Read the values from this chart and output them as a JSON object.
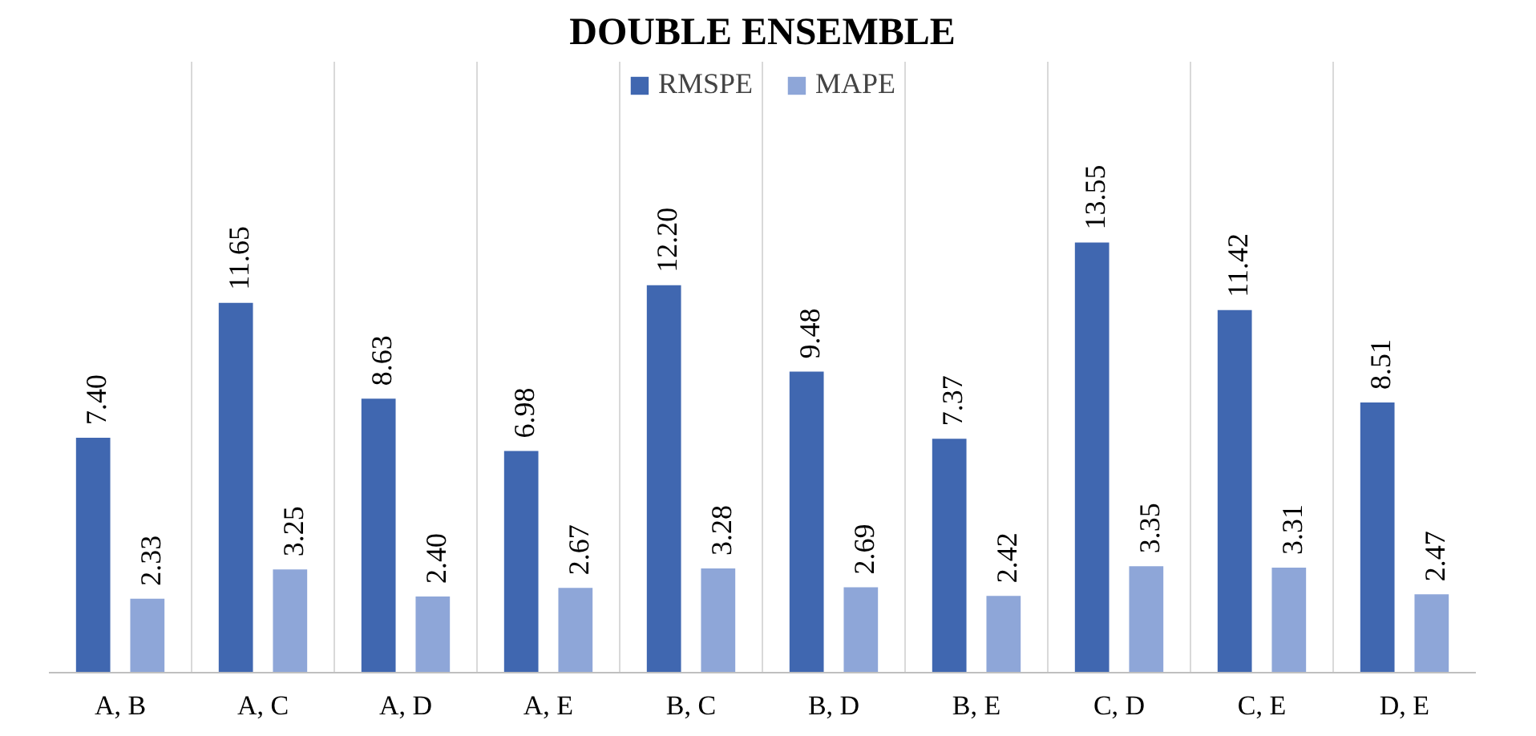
{
  "chart_data": {
    "type": "bar",
    "title": "DOUBLE ENSEMBLE",
    "categories": [
      "A, B",
      "A, C",
      "A, D",
      "A, E",
      "B, C",
      "B, D",
      "B, E",
      "C, D",
      "C, E",
      "D, E"
    ],
    "series": [
      {
        "name": "RMSPE",
        "color": "#4067b0",
        "values": [
          7.4,
          11.65,
          8.63,
          6.98,
          12.2,
          9.48,
          7.37,
          13.55,
          11.42,
          8.51
        ],
        "value_labels": [
          "7.40",
          "11.65",
          "8.63",
          "6.98",
          "12.20",
          "9.48",
          "7.37",
          "13.55",
          "11.42",
          "8.51"
        ]
      },
      {
        "name": "MAPE",
        "color": "#8ea6d8",
        "values": [
          2.33,
          3.25,
          2.4,
          2.67,
          3.28,
          2.69,
          2.42,
          3.35,
          3.31,
          2.47
        ],
        "value_labels": [
          "2.33",
          "3.25",
          "2.40",
          "2.67",
          "3.28",
          "2.69",
          "2.42",
          "3.35",
          "3.31",
          "2.47"
        ]
      }
    ],
    "grid": "x",
    "legend": "top"
  }
}
